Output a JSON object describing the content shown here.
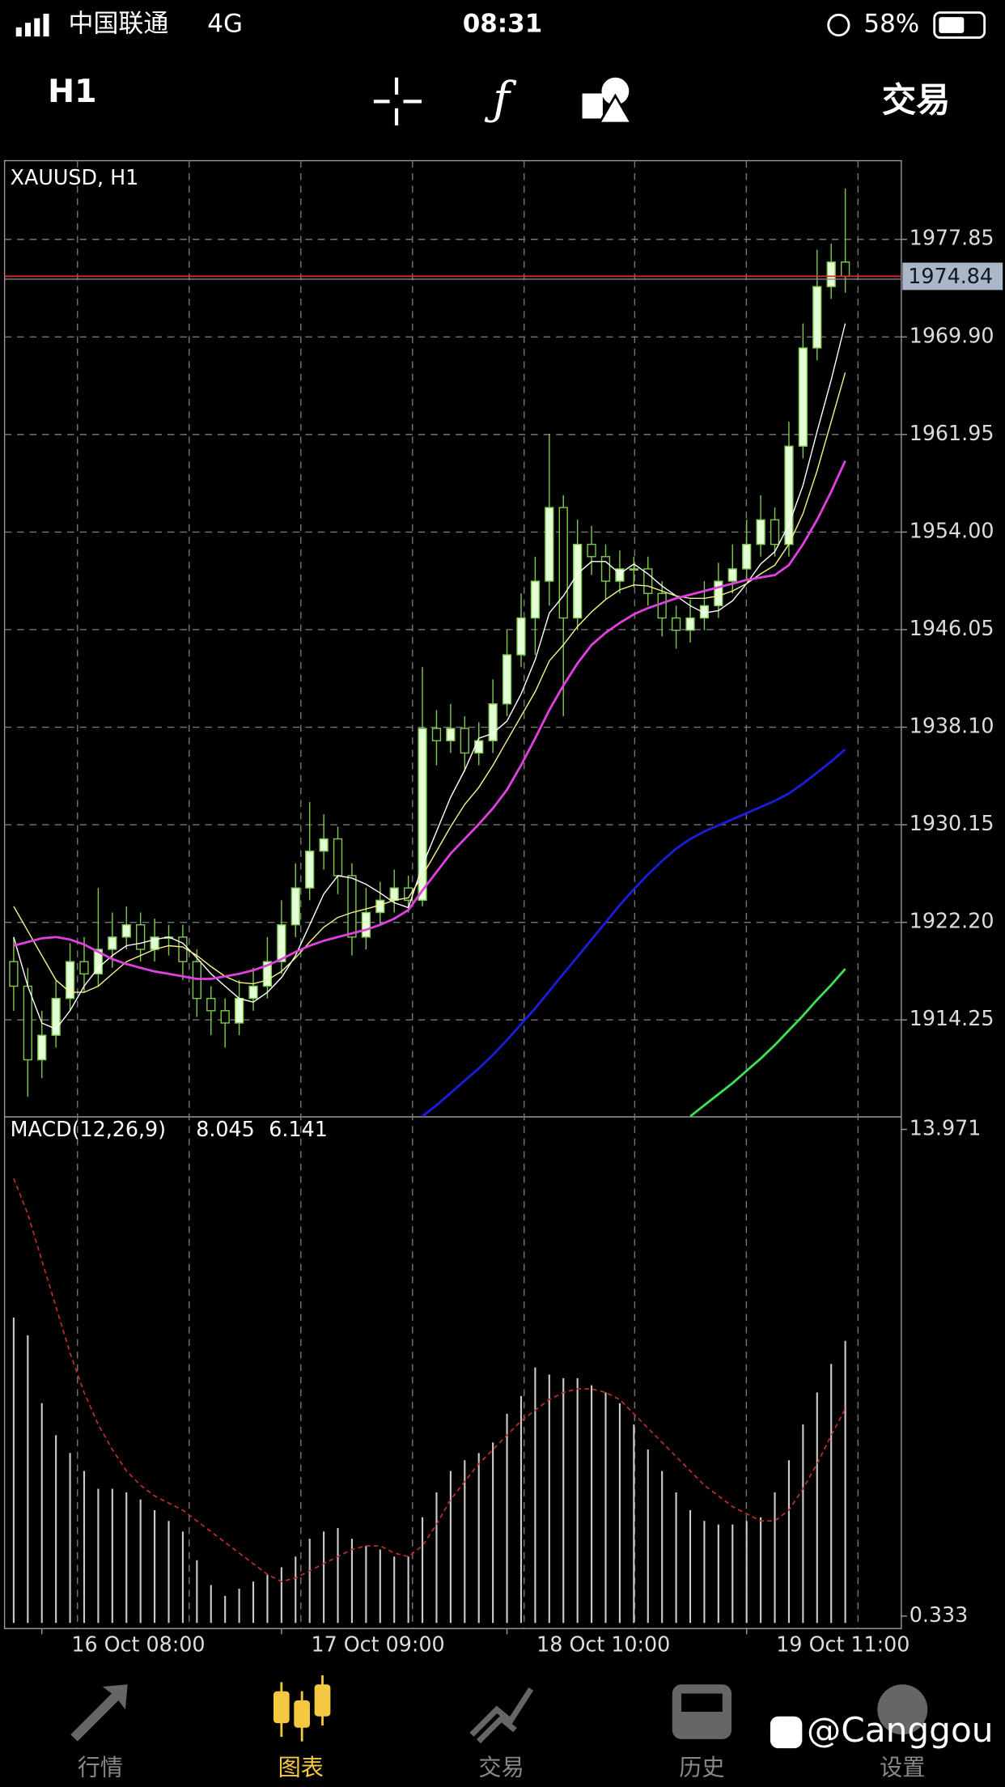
{
  "status_bar": {
    "carrier": "中国联通",
    "network": "4G",
    "time": "08:31",
    "battery": "58%"
  },
  "toolbar": {
    "timeframe": "H1",
    "trade": "交易"
  },
  "chart_data": {
    "type": "candlestick",
    "title": "XAUUSD, H1",
    "open": [
      1919,
      1917,
      1911,
      1913,
      1916,
      1919,
      1918,
      1920,
      1921,
      1922,
      1920,
      1921,
      1921,
      1919,
      1916,
      1915,
      1914,
      1916,
      1917,
      1919,
      1922,
      1925,
      1928,
      1929,
      1926,
      1921,
      1923,
      1924,
      1925,
      1924,
      1938,
      1937,
      1938,
      1936,
      1937,
      1940,
      1944,
      1947,
      1950,
      1956,
      1947,
      1953,
      1952,
      1950,
      1951,
      1951,
      1949,
      1947,
      1946,
      1947,
      1948,
      1950,
      1951,
      1953,
      1955,
      1953,
      1961,
      1969,
      1974,
      1976
    ],
    "high": [
      1921,
      1918.5,
      1915,
      1917.5,
      1920.5,
      1921,
      1925,
      1923,
      1923.5,
      1923,
      1922.5,
      1922,
      1922,
      1920,
      1917,
      1916,
      1917.5,
      1918.5,
      1921,
      1924,
      1927,
      1932,
      1931,
      1930,
      1927,
      1925,
      1925.5,
      1926.5,
      1926,
      1943,
      1939.5,
      1940,
      1939,
      1938.5,
      1942,
      1946,
      1949,
      1952,
      1962,
      1957,
      1955,
      1954.5,
      1953,
      1952.5,
      1952,
      1952,
      1950,
      1948,
      1948.5,
      1950,
      1951.5,
      1953,
      1955,
      1957,
      1956,
      1963,
      1971,
      1977,
      1977.5,
      1982
    ],
    "low": [
      1915,
      1908,
      1909.5,
      1912,
      1915,
      1916.5,
      1917,
      1918.5,
      1920,
      1919,
      1919,
      1919.5,
      1917.5,
      1914.5,
      1913,
      1912,
      1913,
      1915,
      1916,
      1918,
      1921,
      1924,
      1926.5,
      1924.5,
      1919.5,
      1920,
      1922,
      1923,
      1923,
      1923.5,
      1935,
      1936,
      1934.5,
      1935,
      1936,
      1939,
      1943,
      1944,
      1948,
      1939,
      1946,
      1950.5,
      1948.5,
      1949,
      1949.5,
      1948,
      1945.5,
      1944.5,
      1945,
      1946,
      1947,
      1949,
      1950,
      1952,
      1952,
      1952,
      1960,
      1968,
      1973,
      1973.5
    ],
    "close": [
      1917,
      1911,
      1913,
      1916,
      1919,
      1918,
      1920,
      1921,
      1922,
      1920,
      1921,
      1921,
      1919,
      1916,
      1915,
      1914,
      1916,
      1917,
      1919,
      1922,
      1925,
      1928,
      1929,
      1926,
      1921,
      1923,
      1924,
      1925,
      1924,
      1938,
      1937,
      1938,
      1936,
      1937,
      1940,
      1944,
      1947,
      1950,
      1956,
      1947,
      1953,
      1952,
      1950,
      1951,
      1951,
      1949,
      1947,
      1946,
      1947,
      1948,
      1950,
      1951,
      1953,
      1955,
      1953,
      1961,
      1969,
      1974,
      1976,
      1974.84
    ],
    "up_color": "#e4ffd6",
    "down_color": "#000000",
    "wick_color": "#7ec850",
    "ylim": [
      1906.35,
      1984.26
    ],
    "yticks": [
      1977.85,
      {
        "value": 1969.9,
        "label": "1969.90"
      },
      1961.95,
      {
        "value": 1954,
        "label": "1954.00"
      },
      1946.05,
      {
        "value": 1938.1,
        "label": "1938.10"
      },
      1930.15,
      {
        "value": 1922.2,
        "label": "1922.20"
      },
      1914.25
    ],
    "current_price": 1974.84,
    "current_price_color": "#e0312f",
    "xticks": [
      {
        "value": 2,
        "label": "16 Oct 08:00"
      },
      {
        "value": 19,
        "label": "17 Oct 09:00"
      },
      {
        "value": 35,
        "label": "18 Oct 10:00"
      },
      {
        "value": 52,
        "label": "19 Oct 11:00"
      }
    ],
    "grid": true,
    "overlays": [
      {
        "color": "#ffffff",
        "values": [
          1921,
          1917,
          1914,
          1913.5,
          1915,
          1917,
          1918.5,
          1919.5,
          1920.3,
          1920.5,
          1920.8,
          1921,
          1920.5,
          1919.3,
          1918,
          1917,
          1916,
          1915.7,
          1916.5,
          1917.7,
          1919.5,
          1922,
          1924.5,
          1926,
          1925.8,
          1925.3,
          1924.6,
          1923.8,
          1923.4,
          1926.8,
          1929.6,
          1932.4,
          1934.6,
          1937.2,
          1937.6,
          1938.6,
          1940.8,
          1943.6,
          1947.4,
          1948.8,
          1950.6,
          1951.6,
          1951.6,
          1950.6,
          1951.4,
          1950.6,
          1949.6,
          1948.8,
          1948,
          1947.4,
          1947.6,
          1948.4,
          1949.8,
          1951.4,
          1952.4,
          1954.6,
          1957.8,
          1962.2,
          1966.4,
          1971
        ]
      },
      {
        "color": "#f3f58a",
        "values": [
          1923.5,
          1921.5,
          1919.5,
          1917.5,
          1916.5,
          1916.5,
          1917,
          1918,
          1919,
          1919.5,
          1920,
          1920.3,
          1920.2,
          1919.5,
          1918.6,
          1917.8,
          1917.3,
          1917.2,
          1917.5,
          1918.2,
          1919.3,
          1920.6,
          1921.8,
          1922.6,
          1923,
          1923.3,
          1923.6,
          1924,
          1924.2,
          1926,
          1928,
          1930,
          1931.8,
          1933.2,
          1935,
          1937,
          1939,
          1941,
          1943.5,
          1944.8,
          1946.3,
          1947.5,
          1948.5,
          1949.3,
          1949.7,
          1949.6,
          1949.2,
          1948.8,
          1948.6,
          1948.6,
          1948.8,
          1949.2,
          1949.8,
          1950.6,
          1951.3,
          1953,
          1955.5,
          1959,
          1963,
          1967
        ]
      },
      {
        "color": "#e040e0",
        "values": [
          1920.3,
          1920.6,
          1920.9,
          1921,
          1920.8,
          1920.4,
          1919.8,
          1919.2,
          1918.8,
          1918.5,
          1918.2,
          1918,
          1917.8,
          1917.6,
          1917.6,
          1917.8,
          1918,
          1918.3,
          1918.7,
          1919.2,
          1919.8,
          1920.3,
          1920.7,
          1921,
          1921.3,
          1921.6,
          1922,
          1922.5,
          1923.2,
          1924.8,
          1926.3,
          1927.8,
          1929,
          1930.2,
          1931.5,
          1933,
          1935,
          1937.2,
          1939.5,
          1941.5,
          1943.3,
          1944.8,
          1945.8,
          1946.6,
          1947.3,
          1947.8,
          1948.2,
          1948.6,
          1948.9,
          1949.2,
          1949.5,
          1949.8,
          1950.1,
          1950.3,
          1950.5,
          1951.3,
          1953,
          1955,
          1957.3,
          1959.8
        ]
      },
      {
        "color": "#1c1ce0",
        "values": [
          null,
          null,
          null,
          null,
          null,
          null,
          null,
          null,
          null,
          null,
          null,
          null,
          null,
          null,
          null,
          null,
          null,
          null,
          null,
          null,
          null,
          null,
          null,
          null,
          null,
          null,
          null,
          null,
          null,
          1906.4,
          1907.3,
          1908.3,
          1909.3,
          1910.3,
          1911.4,
          1912.6,
          1913.9,
          1915.2,
          1916.6,
          1918,
          1919.4,
          1920.8,
          1922.2,
          1923.6,
          1924.9,
          1926.1,
          1927.2,
          1928.2,
          1929,
          1929.6,
          1930.1,
          1930.6,
          1931.1,
          1931.6,
          1932.1,
          1932.7,
          1933.5,
          1934.4,
          1935.3,
          1936.3
        ]
      },
      {
        "color": "#3ee05a",
        "values": [
          null,
          null,
          null,
          null,
          null,
          null,
          null,
          null,
          null,
          null,
          null,
          null,
          null,
          null,
          null,
          null,
          null,
          null,
          null,
          null,
          null,
          null,
          null,
          null,
          null,
          null,
          null,
          null,
          null,
          null,
          null,
          null,
          null,
          null,
          null,
          null,
          null,
          null,
          null,
          null,
          null,
          null,
          null,
          null,
          null,
          null,
          null,
          null,
          1906.4,
          1907.3,
          1908.2,
          1909.1,
          1910.1,
          1911.1,
          1912.2,
          1913.4,
          1914.6,
          1915.9,
          1917.1,
          1918.4
        ]
      }
    ],
    "macd": {
      "label": "MACD(12,26,9)",
      "ylim": [
        0.333,
        13.971
      ],
      "yticks": [
        13.971,
        0.333
      ],
      "histogram_color": "#cccccc",
      "signal_color": "#c0302a",
      "histogram": [
        8.7,
        8.2,
        6.3,
        5.4,
        4.9,
        4.4,
        3.9,
        3.9,
        3.8,
        3.6,
        3.3,
        3.0,
        2.7,
        1.9,
        1.2,
        0.9,
        1.1,
        1.3,
        1.5,
        1.7,
        2.0,
        2.5,
        2.7,
        2.8,
        2.5,
        2.3,
        2.2,
        2.0,
        2.0,
        3.1,
        3.8,
        4.4,
        4.7,
        4.9,
        5.2,
        6.0,
        6.5,
        7.3,
        7.1,
        7.0,
        7.0,
        6.8,
        6.6,
        6.3,
        5.7,
        5.0,
        4.4,
        3.8,
        3.3,
        3.0,
        2.9,
        2.9,
        3.0,
        3.1,
        3.8,
        4.7,
        5.7,
        6.6,
        7.4,
        8.045
      ],
      "signal": [
        12.6,
        11.6,
        10.3,
        9.0,
        7.7,
        6.6,
        5.7,
        5.0,
        4.4,
        4.0,
        3.7,
        3.5,
        3.3,
        3.0,
        2.7,
        2.4,
        2.1,
        1.8,
        1.5,
        1.3,
        1.4,
        1.6,
        1.8,
        2.0,
        2.2,
        2.3,
        2.3,
        2.1,
        2.0,
        2.3,
        2.9,
        3.6,
        4.1,
        4.6,
        5.0,
        5.4,
        5.8,
        6.1,
        6.4,
        6.6,
        6.7,
        6.7,
        6.6,
        6.4,
        6.0,
        5.6,
        5.2,
        4.8,
        4.4,
        4.0,
        3.7,
        3.4,
        3.2,
        3.0,
        3.0,
        3.3,
        3.9,
        4.6,
        5.4,
        6.141
      ]
    }
  },
  "nav": {
    "items": [
      "行情",
      "图表",
      "交易",
      "历史",
      "设置"
    ],
    "active": 1,
    "active_color": "#f5c842"
  },
  "watermark": "@Canggou"
}
